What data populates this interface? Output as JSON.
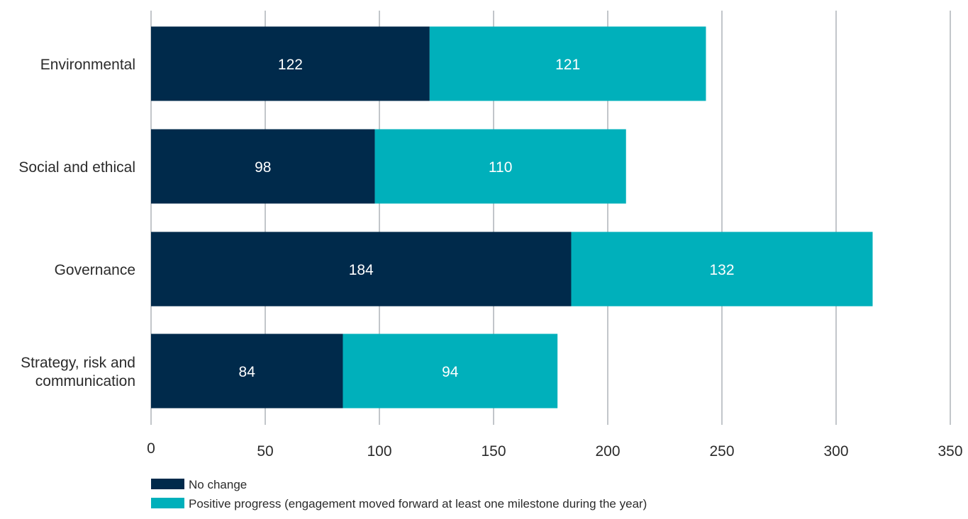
{
  "chart_data": {
    "type": "bar",
    "orientation": "horizontal",
    "stacked": true,
    "categories": [
      "Environmental",
      "Social and ethical",
      "Governance",
      "Strategy, risk and communication"
    ],
    "series": [
      {
        "name": "No change",
        "values": [
          122,
          98,
          184,
          84
        ],
        "color": "#002a4b"
      },
      {
        "name": "Positive progress (engagement moved forward at least one milestone during the year)",
        "values": [
          121,
          110,
          132,
          94
        ],
        "color": "#00b0bb"
      }
    ],
    "xlim": [
      0,
      350
    ],
    "xticks": [
      0,
      50,
      100,
      150,
      200,
      250,
      300,
      350
    ],
    "grid": true,
    "legend_position": "bottom-left",
    "title": "",
    "xlabel": "",
    "ylabel": ""
  },
  "colors": {
    "gridline": "#9aa0a6",
    "text": "#2b2b2b",
    "bar_label": "#ffffff"
  }
}
